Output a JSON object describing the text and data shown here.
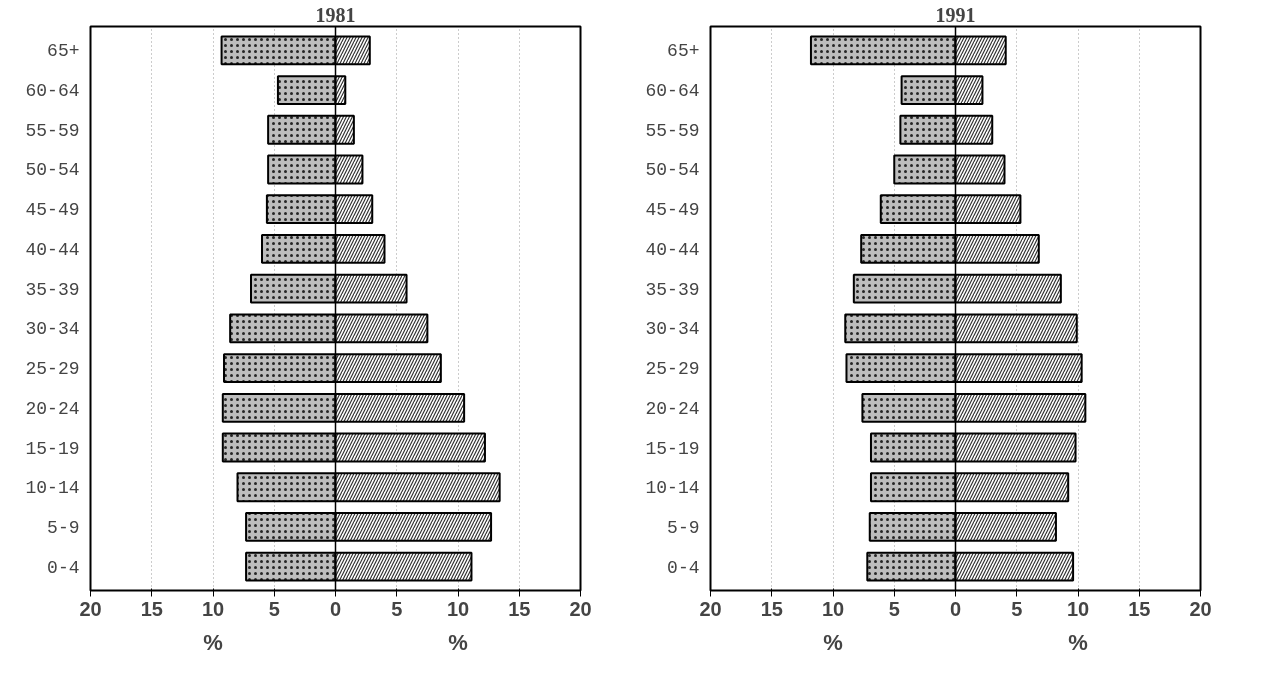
{
  "chart_data": [
    {
      "type": "bar",
      "orientation": "horizontal",
      "title": "1981",
      "categories": [
        "65+",
        "60-64",
        "55-59",
        "50-54",
        "45-49",
        "40-44",
        "35-39",
        "30-34",
        "25-29",
        "20-24",
        "15-19",
        "10-14",
        "5-9",
        "0-4"
      ],
      "series": [
        {
          "color": "#bdbdbd",
          "values": [
            -9.3,
            -4.7,
            -5.5,
            -5.5,
            -5.6,
            -6.0,
            -6.9,
            -8.6,
            -9.1,
            -9.2,
            -9.2,
            -8.0,
            -7.3,
            -7.3
          ]
        },
        {
          "color": "#ffffff",
          "values": [
            2.8,
            0.8,
            1.5,
            2.2,
            3.0,
            4.0,
            5.8,
            7.5,
            8.6,
            10.5,
            12.2,
            13.4,
            12.7,
            11.1
          ]
        }
      ],
      "xlim": [
        -20,
        20
      ],
      "xticks": [
        {
          "value": -20,
          "label": "20"
        },
        {
          "value": -15,
          "label": "15"
        },
        {
          "value": -10,
          "label": "10"
        },
        {
          "value": -5,
          "label": "5"
        },
        0,
        5,
        10,
        15,
        20
      ],
      "annotations": [
        "%",
        "%"
      ],
      "grid": "x",
      "stacked": true
    },
    {
      "type": "bar",
      "orientation": "horizontal",
      "title": "1991",
      "categories": [
        "65+",
        "60-64",
        "55-59",
        "50-54",
        "45-49",
        "40-44",
        "35-39",
        "30-34",
        "25-29",
        "20-24",
        "15-19",
        "10-14",
        "5-9",
        "0-4"
      ],
      "series": [
        {
          "color": "#bdbdbd",
          "values": [
            -11.8,
            -4.4,
            -4.5,
            -5.0,
            -6.1,
            -7.7,
            -8.3,
            -9.0,
            -8.9,
            -7.6,
            -6.9,
            -6.9,
            -7.0,
            -7.2
          ]
        },
        {
          "color": "#ffffff",
          "values": [
            4.1,
            2.2,
            3.0,
            4.0,
            5.3,
            6.8,
            8.6,
            9.9,
            10.3,
            10.6,
            9.8,
            9.2,
            8.2,
            9.6
          ]
        }
      ],
      "xlim": [
        -20,
        20
      ],
      "xticks": [
        {
          "value": -20,
          "label": "20"
        },
        {
          "value": -15,
          "label": "15"
        },
        {
          "value": -10,
          "label": "10"
        },
        {
          "value": -5,
          "label": "5"
        },
        0,
        5,
        10,
        15,
        20
      ],
      "annotations": [
        "%",
        "%"
      ],
      "grid": "x",
      "stacked": true
    }
  ]
}
